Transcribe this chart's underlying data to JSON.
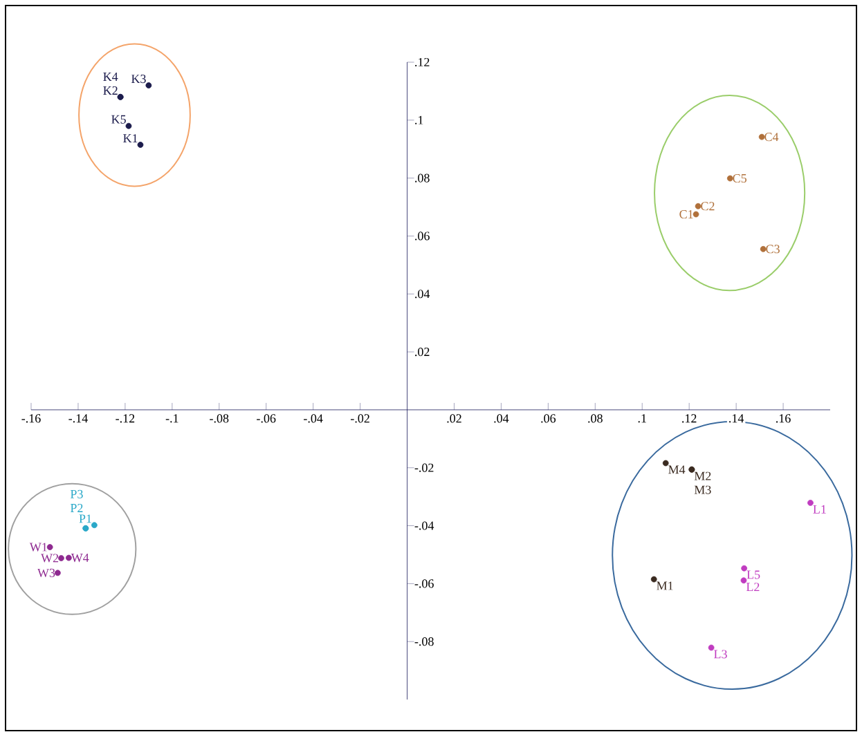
{
  "chart_data": {
    "type": "scatter",
    "marker": "circle",
    "xlim": [
      -0.16,
      0.18
    ],
    "ylim": [
      -0.1,
      0.12
    ],
    "xticks": [
      {
        "value": -0.16,
        "label": "-.16"
      },
      {
        "value": -0.14,
        "label": "-.14"
      },
      {
        "value": -0.12,
        "label": "-.12"
      },
      {
        "value": -0.1,
        "label": "-.1"
      },
      {
        "value": -0.08,
        "label": "-.08"
      },
      {
        "value": -0.06,
        "label": "-.06"
      },
      {
        "value": -0.04,
        "label": "-.04"
      },
      {
        "value": -0.02,
        "label": "-.02"
      },
      {
        "value": 0.02,
        "label": ".02"
      },
      {
        "value": 0.04,
        "label": ".04"
      },
      {
        "value": 0.06,
        "label": ".06"
      },
      {
        "value": 0.08,
        "label": ".08"
      },
      {
        "value": 0.1,
        "label": ".1"
      },
      {
        "value": 0.12,
        "label": ".12"
      },
      {
        "value": 0.14,
        "label": ".14"
      },
      {
        "value": 0.16,
        "label": ".16"
      }
    ],
    "yticks": [
      {
        "value": 0.12,
        "label": ".12"
      },
      {
        "value": 0.1,
        "label": ".1"
      },
      {
        "value": 0.08,
        "label": ".08"
      },
      {
        "value": 0.06,
        "label": ".06"
      },
      {
        "value": 0.04,
        "label": ".04"
      },
      {
        "value": 0.02,
        "label": ".02"
      },
      {
        "value": -0.02,
        "label": "-.02"
      },
      {
        "value": -0.04,
        "label": "-.04"
      },
      {
        "value": -0.06,
        "label": "-.06"
      },
      {
        "value": -0.08,
        "label": "-.08"
      }
    ],
    "series": [
      {
        "color": "#1c1c4c",
        "x": [
          -0.122,
          -0.122,
          -0.11,
          -0.1185,
          -0.1135
        ],
        "values": [
          0.108,
          0.108,
          0.112,
          0.098,
          0.0915
        ]
      },
      {
        "color": "#b0703a",
        "x": [
          0.1509,
          0.1374,
          0.1238,
          0.1229,
          0.1515
        ],
        "values": [
          0.0942,
          0.0799,
          0.0703,
          0.0675,
          0.0555
        ]
      },
      {
        "color": "#2aa8c8",
        "x": [
          -0.1331,
          -0.1368,
          -0.1368
        ],
        "values": [
          -0.0398,
          -0.0409,
          -0.0409
        ]
      },
      {
        "color": "#8e2a90",
        "x": [
          -0.152,
          -0.1472,
          -0.144,
          -0.1487
        ],
        "values": [
          -0.0474,
          -0.0512,
          -0.0511,
          -0.0563
        ]
      },
      {
        "color": "#3a2a20",
        "x": [
          0.11,
          0.1211,
          0.1211,
          0.105
        ],
        "values": [
          -0.0184,
          -0.0206,
          -0.0206,
          -0.0585
        ]
      },
      {
        "color": "#c03cc0",
        "x": [
          0.1716,
          0.1434,
          0.1432,
          0.1294
        ],
        "values": [
          -0.0321,
          -0.0547,
          -0.0589,
          -0.0821
        ]
      }
    ],
    "annotations": [
      {
        "text": "K2",
        "x": -0.122,
        "y": 0.108
      },
      {
        "text": "K4",
        "x": -0.122,
        "y": 0.108
      },
      {
        "text": "K3",
        "x": -0.11,
        "y": 0.112
      },
      {
        "text": "K5",
        "x": -0.1185,
        "y": 0.098
      },
      {
        "text": "K1",
        "x": -0.1135,
        "y": 0.0915
      },
      {
        "text": "C4",
        "x": 0.1509,
        "y": 0.0942
      },
      {
        "text": "C5",
        "x": 0.1374,
        "y": 0.0799
      },
      {
        "text": "C2",
        "x": 0.1238,
        "y": 0.0703
      },
      {
        "text": "C1",
        "x": 0.1229,
        "y": 0.0675
      },
      {
        "text": "C3",
        "x": 0.1515,
        "y": 0.0555
      },
      {
        "text": "P1",
        "x": -0.1331,
        "y": -0.0398
      },
      {
        "text": "P2",
        "x": -0.1368,
        "y": -0.0409
      },
      {
        "text": "P3",
        "x": -0.1368,
        "y": -0.0409
      },
      {
        "text": "W1",
        "x": -0.152,
        "y": -0.0474
      },
      {
        "text": "W2",
        "x": -0.1472,
        "y": -0.0512
      },
      {
        "text": "W4",
        "x": -0.144,
        "y": -0.0511
      },
      {
        "text": "W3",
        "x": -0.1487,
        "y": -0.0563
      },
      {
        "text": "M4",
        "x": 0.11,
        "y": -0.0184
      },
      {
        "text": "M2",
        "x": 0.1211,
        "y": -0.0206
      },
      {
        "text": "M3",
        "x": 0.1211,
        "y": -0.0206
      },
      {
        "text": "M1",
        "x": 0.105,
        "y": -0.0585
      },
      {
        "text": "L1",
        "x": 0.1716,
        "y": -0.0321
      },
      {
        "text": "L5",
        "x": 0.1434,
        "y": -0.0547
      },
      {
        "text": "L2",
        "x": 0.1432,
        "y": -0.0589
      },
      {
        "text": "L3",
        "x": 0.1294,
        "y": -0.0821
      }
    ]
  }
}
